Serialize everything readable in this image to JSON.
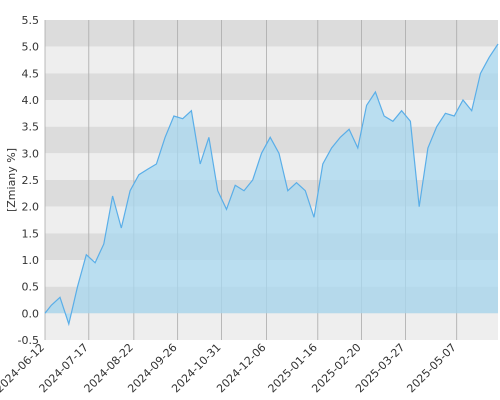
{
  "chart_data": {
    "type": "area",
    "title": "",
    "xlabel": "",
    "ylabel": "[Zmiany %]",
    "ylim": [
      -0.5,
      5.5
    ],
    "y_ticks": [
      "5.5",
      "5.0",
      "4.5",
      "4.0",
      "3.5",
      "3.0",
      "2.5",
      "2.0",
      "1.5",
      "1.0",
      "0.5",
      "0.0",
      "-0.5"
    ],
    "y_tick_values": [
      5.5,
      5.0,
      4.5,
      4.0,
      3.5,
      3.0,
      2.5,
      2.0,
      1.5,
      1.0,
      0.5,
      0.0,
      -0.5
    ],
    "x_ticks": [
      "2024-06-12",
      "2024-07-17",
      "2024-08-22",
      "2024-09-26",
      "2024-10-31",
      "2024-12-06",
      "2025-01-16",
      "2025-02-20",
      "2025-03-27",
      "2025-05-07"
    ],
    "grid": true,
    "colors": {
      "line": "#5aaee8",
      "fill": "#a8d8f0",
      "band_dark": "#dcdcdc",
      "band_light": "#eeeeee",
      "grid_line": "#aaaaaa"
    },
    "series": [
      {
        "x": [
          "2024-06-12",
          "2024-06-17",
          "2024-06-24",
          "2024-07-01",
          "2024-07-08",
          "2024-07-15",
          "2024-07-22",
          "2024-07-29",
          "2024-08-05",
          "2024-08-12",
          "2024-08-19",
          "2024-08-26",
          "2024-09-02",
          "2024-09-09",
          "2024-09-16",
          "2024-09-23",
          "2024-09-30",
          "2024-10-07",
          "2024-10-14",
          "2024-10-21",
          "2024-10-28",
          "2024-11-04",
          "2024-11-11",
          "2024-11-18",
          "2024-11-25",
          "2024-12-02",
          "2024-12-09",
          "2024-12-16",
          "2024-12-23",
          "2024-12-30",
          "2025-01-06",
          "2025-01-13",
          "2025-01-20",
          "2025-01-27",
          "2025-02-03",
          "2025-02-10",
          "2025-02-17",
          "2025-02-24",
          "2025-03-03",
          "2025-03-10",
          "2025-03-17",
          "2025-03-24",
          "2025-03-31",
          "2025-04-07",
          "2025-04-14",
          "2025-04-21",
          "2025-04-28",
          "2025-05-05",
          "2025-05-12",
          "2025-05-19",
          "2025-05-26",
          "2025-06-02",
          "2025-06-09"
        ],
        "values": [
          0.0,
          0.15,
          0.3,
          -0.2,
          0.5,
          1.1,
          0.95,
          1.3,
          2.2,
          1.6,
          2.3,
          2.6,
          2.7,
          2.8,
          3.3,
          3.7,
          3.65,
          3.8,
          2.8,
          3.3,
          2.3,
          1.95,
          2.4,
          2.3,
          2.5,
          3.0,
          3.3,
          3.0,
          2.3,
          2.45,
          2.3,
          1.8,
          2.8,
          3.1,
          3.3,
          3.45,
          3.1,
          3.9,
          4.15,
          3.7,
          3.6,
          3.8,
          3.6,
          2.0,
          3.1,
          3.5,
          3.75,
          3.7,
          4.0,
          3.8,
          4.5,
          4.8,
          5.05
        ]
      }
    ]
  }
}
